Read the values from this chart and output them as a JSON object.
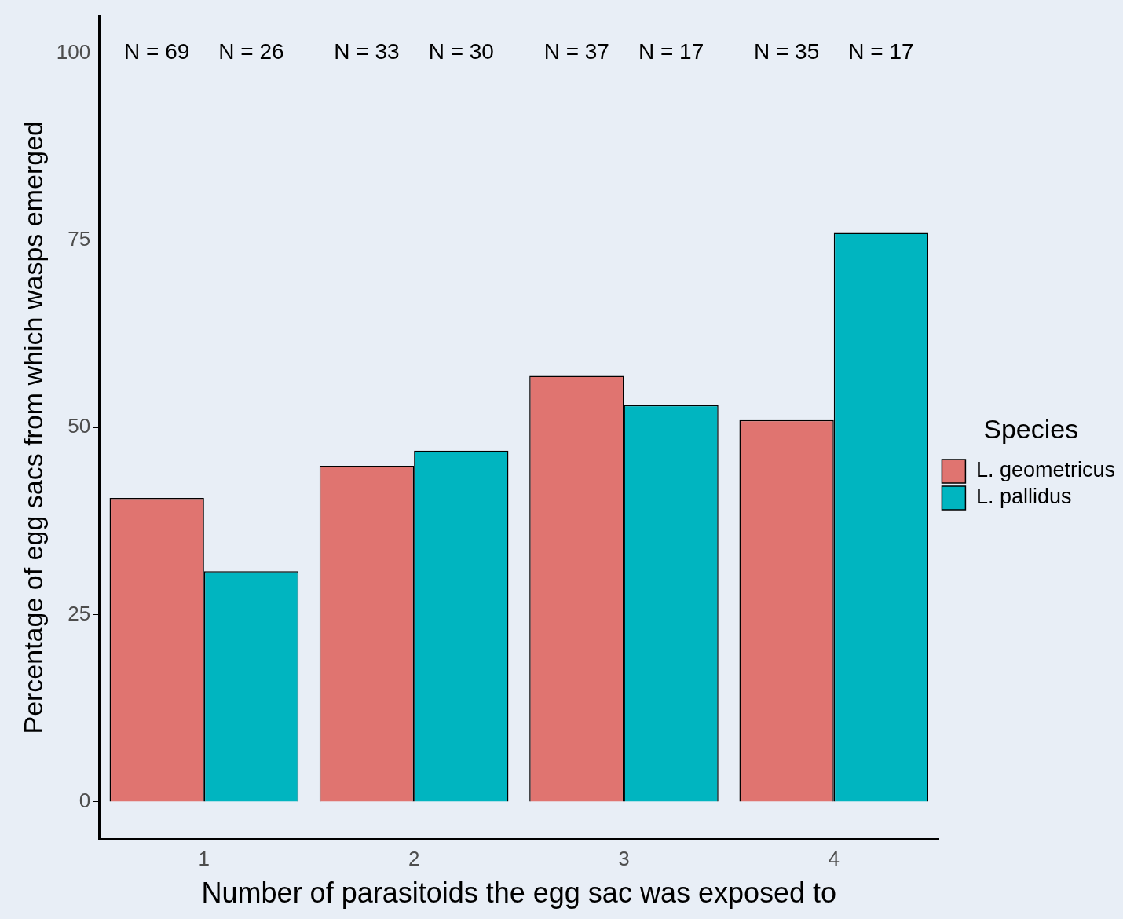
{
  "chart_data": {
    "type": "bar",
    "xlabel": "Number of parasitoids the egg sac was exposed to",
    "ylabel": "Percentage of egg sacs from which wasps emerged",
    "legend_title": "Species",
    "categories": [
      "1",
      "2",
      "3",
      "4"
    ],
    "series": [
      {
        "name": "L. geometricus",
        "color": "#e07470",
        "values": [
          40.6,
          44.9,
          56.9,
          51.0
        ]
      },
      {
        "name": "L. pallidus",
        "color": "#00b5c0",
        "values": [
          30.8,
          46.9,
          53.0,
          76.0
        ]
      }
    ],
    "ylim": [
      -5,
      105
    ],
    "yticks": [
      0,
      25,
      50,
      75,
      100
    ],
    "grid": false,
    "legend": "right",
    "annotations": [
      "N = 69",
      "N = 26",
      "N = 33",
      "N = 30",
      "N = 37",
      "N = 17",
      "N = 35",
      "N = 17"
    ]
  }
}
